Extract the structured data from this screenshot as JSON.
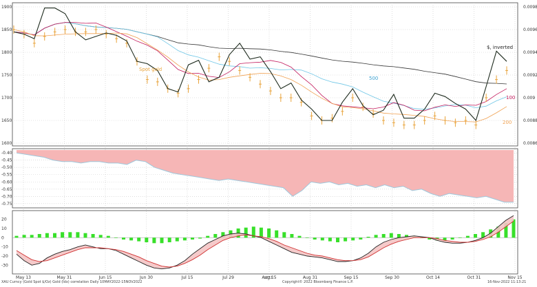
{
  "chart_data": [
    {
      "type": "line",
      "panel": "price",
      "x_labels": [
        "May 13",
        "May 31",
        "Jun 15",
        "Jun 30",
        "Jul 15",
        "Jul 29",
        "Aug 15",
        "Aug 31",
        "Sep 15",
        "Sep 30",
        "Oct 14",
        "Oct 31",
        "Nov 15"
      ],
      "left_axis": {
        "ticks": [
          "1900",
          "1850",
          "1800",
          "1750",
          "1700",
          "1650",
          "1600"
        ],
        "range": [
          1600,
          1900
        ]
      },
      "right_axis": {
        "ticks": [
          "0.0098",
          "0.0096",
          "0.0094",
          "0.0092",
          "0.009",
          "0.0088",
          "0.0086"
        ],
        "range": [
          0.0086,
          0.0098
        ]
      },
      "annotations": {
        "gold": "Spot gold",
        "yen": "$, inverted",
        "ma500": "500",
        "ma100": "100",
        "ma200": "200"
      },
      "colors": {
        "gold": "#e8a33a",
        "yen": "#1e2b1e",
        "ma500": "#6ec6e6",
        "ma100": "#c2185b",
        "ma200": "#f0a050",
        "long_ma": "#333333"
      },
      "series": [
        {
          "name": "$, inverted",
          "axis": "right",
          "values": [
            0.00958,
            0.00956,
            0.00952,
            0.00979,
            0.00979,
            0.00974,
            0.00958,
            0.00951,
            0.00954,
            0.00957,
            0.00955,
            0.0095,
            0.00932,
            0.0093,
            0.00924,
            0.00908,
            0.00905,
            0.00929,
            0.00933,
            0.00914,
            0.00918,
            0.00938,
            0.00948,
            0.00934,
            0.00936,
            0.00923,
            0.00908,
            0.00913,
            0.00898,
            0.0089,
            0.0088,
            0.0088,
            0.00896,
            0.00908,
            0.00893,
            0.00885,
            0.00889,
            0.00903,
            0.00882,
            0.00882,
            0.0089,
            0.00904,
            0.00901,
            0.00895,
            0.0089,
            0.0088,
            0.0091,
            0.00941,
            0.00932
          ]
        },
        {
          "name": "Spot gold",
          "axis": "left",
          "values": [
            1850,
            1840,
            1820,
            1835,
            1845,
            1850,
            1845,
            1845,
            1850,
            1840,
            1830,
            1820,
            1780,
            1740,
            1735,
            1720,
            1710,
            1720,
            1740,
            1765,
            1790,
            1780,
            1760,
            1745,
            1730,
            1715,
            1700,
            1700,
            1690,
            1660,
            1650,
            1655,
            1670,
            1700,
            1680,
            1665,
            1650,
            1645,
            1640,
            1640,
            1650,
            1660,
            1650,
            1645,
            1650,
            1640,
            1700,
            1740,
            1760
          ]
        }
      ]
    },
    {
      "type": "area",
      "panel": "correlation",
      "y_ticks": [
        "-0.40",
        "-0.45",
        "-0.50",
        "-0.55",
        "-0.60",
        "-0.65",
        "-0.70",
        "-0.75"
      ],
      "ylim": [
        -0.77,
        -0.38
      ],
      "colors": {
        "fill": "#f6b6b6",
        "line": "#9ec8dc"
      },
      "values": [
        -0.4,
        -0.41,
        -0.42,
        -0.43,
        -0.45,
        -0.46,
        -0.46,
        -0.47,
        -0.46,
        -0.46,
        -0.47,
        -0.47,
        -0.48,
        -0.45,
        -0.46,
        -0.5,
        -0.52,
        -0.54,
        -0.55,
        -0.56,
        -0.57,
        -0.58,
        -0.59,
        -0.58,
        -0.59,
        -0.6,
        -0.61,
        -0.62,
        -0.63,
        -0.64,
        -0.7,
        -0.66,
        -0.6,
        -0.61,
        -0.6,
        -0.62,
        -0.61,
        -0.63,
        -0.62,
        -0.64,
        -0.62,
        -0.64,
        -0.63,
        -0.66,
        -0.65,
        -0.68,
        -0.7,
        -0.68,
        -0.69,
        -0.7,
        -0.71,
        -0.7,
        -0.72,
        -0.74,
        -0.74
      ]
    },
    {
      "type": "bar",
      "panel": "oscillator",
      "y_ticks": [
        "20",
        "10",
        "0",
        "-10",
        "-20",
        "-30"
      ],
      "ylim": [
        -38,
        28
      ],
      "colors": {
        "histogram": "#38e02a",
        "line_a": "#222222",
        "line_b": "#d03030",
        "band": "#f4c4c4"
      },
      "histogram": [
        2,
        3,
        3,
        4,
        5,
        5,
        6,
        6,
        6,
        5,
        4,
        3,
        2,
        0,
        -2,
        -3,
        -4,
        -5,
        -6,
        -6,
        -5,
        -4,
        -3,
        -2,
        -1,
        2,
        4,
        6,
        8,
        10,
        11,
        12,
        11,
        10,
        8,
        6,
        4,
        2,
        0,
        -2,
        -3,
        -4,
        -5,
        -4,
        -3,
        -2,
        1,
        3,
        4,
        5,
        4,
        3,
        2,
        0,
        -2,
        -3,
        -3,
        -2,
        0,
        2,
        4,
        6,
        9,
        12,
        16,
        20
      ],
      "line_a": [
        -18,
        -25,
        -30,
        -28,
        -22,
        -18,
        -15,
        -13,
        -10,
        -8,
        -10,
        -12,
        -12,
        -14,
        -18,
        -22,
        -26,
        -30,
        -33,
        -34,
        -33,
        -30,
        -25,
        -18,
        -12,
        -6,
        -2,
        2,
        4,
        5,
        4,
        2,
        0,
        -4,
        -8,
        -12,
        -16,
        -18,
        -20,
        -21,
        -22,
        -24,
        -26,
        -26,
        -25,
        -22,
        -17,
        -10,
        -5,
        -2,
        0,
        1,
        2,
        1,
        0,
        -3,
        -5,
        -6,
        -6,
        -5,
        -3,
        0,
        5,
        12,
        19,
        24
      ],
      "line_b": [
        -14,
        -19,
        -24,
        -26,
        -25,
        -22,
        -19,
        -16,
        -13,
        -11,
        -11,
        -11,
        -12,
        -13,
        -15,
        -18,
        -21,
        -25,
        -28,
        -31,
        -32,
        -31,
        -28,
        -24,
        -19,
        -13,
        -8,
        -3,
        0,
        2,
        3,
        2,
        1,
        -1,
        -4,
        -8,
        -11,
        -14,
        -17,
        -19,
        -20,
        -22,
        -24,
        -25,
        -25,
        -24,
        -21,
        -16,
        -11,
        -7,
        -4,
        -2,
        0,
        0,
        0,
        -1,
        -3,
        -4,
        -5,
        -5,
        -4,
        -2,
        1,
        6,
        12,
        18
      ]
    }
  ],
  "footer": {
    "left": "XAU Curncy (Gold Spot    $/Oz)  Gold (Idx) correlation   Daily 10MAY2022-15NOV2022",
    "center": "Copyright© 2022 Bloomberg Finance L.P.",
    "right": "16-Nov-2022 11:13:21",
    "year": "2022"
  }
}
